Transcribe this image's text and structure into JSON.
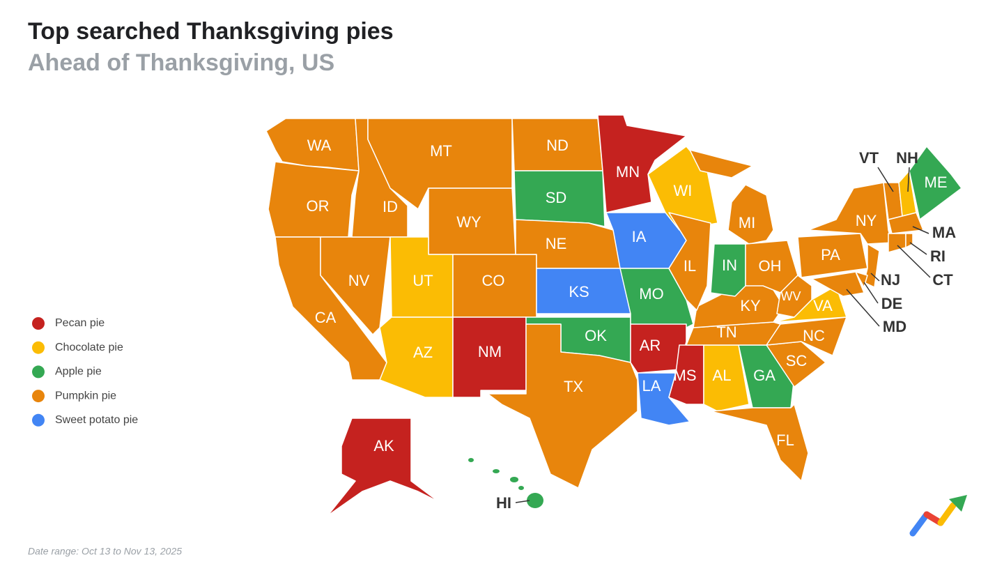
{
  "header": {
    "title": "Top searched Thanksgiving pies",
    "subtitle": "Ahead of Thanksgiving, US"
  },
  "legend": [
    {
      "label": "Pecan pie",
      "color": "#c5221f",
      "states": [
        "MN",
        "NM",
        "AR",
        "MS",
        "AK"
      ]
    },
    {
      "label": "Chocolate pie",
      "color": "#fbbc04",
      "states": [
        "WI",
        "UT",
        "AZ",
        "AL",
        "VA",
        "NH"
      ]
    },
    {
      "label": "Apple pie",
      "color": "#34a853",
      "states": [
        "SD",
        "MO",
        "IN",
        "OK",
        "GA",
        "ME",
        "HI"
      ]
    },
    {
      "label": "Pumpkin pie",
      "color": "#e8850c",
      "states": [
        "WA",
        "OR",
        "CA",
        "NV",
        "ID",
        "MT",
        "WY",
        "CO",
        "ND",
        "NE",
        "TX",
        "IL",
        "MI",
        "OH",
        "KY",
        "TN",
        "WV",
        "NC",
        "SC",
        "FL",
        "PA",
        "NY",
        "VT",
        "MA",
        "RI",
        "CT",
        "NJ",
        "DE",
        "MD"
      ]
    },
    {
      "label": "Sweet potato pie",
      "color": "#4285f4",
      "states": [
        "IA",
        "KS",
        "LA"
      ]
    }
  ],
  "footnote": "Date range: Oct 13 to Nov 13, 2025"
}
